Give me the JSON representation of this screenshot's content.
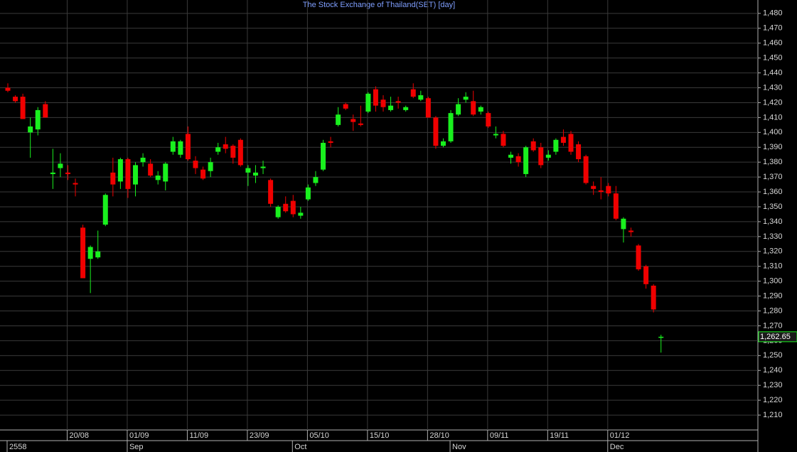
{
  "chart_data": {
    "type": "candlestick",
    "title": "The Stock Exchange of Thailand(SET) [day]",
    "categories": [
      null,
      null,
      null,
      null,
      null,
      null,
      null,
      null,
      "20/08",
      null,
      null,
      null,
      null,
      null,
      null,
      null,
      "01/09",
      null,
      null,
      null,
      null,
      null,
      null,
      null,
      "11/09",
      null,
      null,
      null,
      null,
      null,
      null,
      null,
      "23/09",
      null,
      null,
      null,
      null,
      null,
      null,
      null,
      "05/10",
      null,
      null,
      null,
      null,
      null,
      null,
      null,
      "15/10",
      null,
      null,
      null,
      null,
      null,
      null,
      null,
      "28/10",
      null,
      null,
      null,
      null,
      null,
      null,
      null,
      "09/11",
      null,
      null,
      null,
      null,
      null,
      null,
      null,
      "19/11",
      null,
      null,
      null,
      null,
      null,
      null,
      null,
      "01/12",
      null,
      null,
      null,
      null,
      null,
      null,
      null
    ],
    "month_labels": [
      "2558",
      null,
      null,
      null,
      null,
      null,
      null,
      null,
      null,
      null,
      null,
      null,
      null,
      null,
      null,
      null,
      "Sep",
      null,
      null,
      null,
      null,
      null,
      null,
      null,
      null,
      null,
      null,
      null,
      null,
      null,
      null,
      null,
      null,
      null,
      null,
      null,
      null,
      null,
      "Oct",
      null,
      null,
      null,
      null,
      null,
      null,
      null,
      null,
      null,
      null,
      null,
      null,
      null,
      null,
      null,
      null,
      null,
      null,
      null,
      null,
      "Nov",
      null,
      null,
      null,
      null,
      null,
      null,
      null,
      null,
      null,
      null,
      null,
      null,
      null,
      null,
      null,
      null,
      null,
      null,
      null,
      null,
      "Dec",
      null,
      null,
      null,
      null,
      null,
      null,
      null
    ],
    "open": [
      1430,
      1424,
      1424,
      1400,
      1402,
      1419,
      1372,
      1376,
      1373,
      1366,
      1336,
      1315,
      1316,
      1338,
      1373,
      1367,
      1382,
      1365,
      1380,
      1379,
      1368,
      1367,
      1387,
      1385,
      1399,
      1381,
      1375,
      1374,
      1387,
      1392,
      1391,
      1395,
      1373,
      1371,
      1376,
      1368,
      1343,
      1352,
      1354,
      1344,
      1355,
      1366,
      1375,
      1394,
      1405,
      1419,
      1409,
      1406,
      1414,
      1429,
      1422,
      1415,
      1421,
      1415,
      1429,
      1422,
      1423,
      1410,
      1391,
      1394,
      1412,
      1422,
      1421,
      1414,
      1413,
      1398,
      1399,
      1383,
      1384,
      1372,
      1394,
      1390,
      1383,
      1387,
      1397,
      1399,
      1392,
      1384,
      1364,
      1361,
      1364,
      1359,
      1335,
      1334,
      1324,
      1310,
      1297,
      1262
    ],
    "high": [
      1433,
      1425,
      1426,
      1410,
      1417,
      1421,
      1389,
      1386,
      1378,
      1369,
      1338,
      1324,
      1334,
      1359,
      1383,
      1383,
      1383,
      1380,
      1386,
      1382,
      1374,
      1380,
      1397,
      1395,
      1404,
      1384,
      1377,
      1383,
      1393,
      1397,
      1392,
      1396,
      1378,
      1378,
      1381,
      1369,
      1351,
      1357,
      1358,
      1350,
      1365,
      1374,
      1395,
      1397,
      1417,
      1420,
      1412,
      1418,
      1427,
      1431,
      1425,
      1424,
      1424,
      1418,
      1433,
      1428,
      1424,
      1411,
      1396,
      1415,
      1423,
      1427,
      1428,
      1418,
      1414,
      1404,
      1401,
      1387,
      1386,
      1391,
      1396,
      1393,
      1388,
      1396,
      1402,
      1401,
      1394,
      1385,
      1367,
      1370,
      1366,
      1364,
      1343,
      1336,
      1325,
      1311,
      1298,
      1264
    ],
    "low": [
      1427,
      1420,
      1409,
      1383,
      1398,
      1410,
      1362,
      1370,
      1368,
      1357,
      1302,
      1292,
      1315,
      1337,
      1357,
      1362,
      1356,
      1357,
      1377,
      1370,
      1365,
      1361,
      1385,
      1383,
      1381,
      1372,
      1368,
      1370,
      1385,
      1386,
      1379,
      1377,
      1364,
      1366,
      1372,
      1350,
      1342,
      1346,
      1343,
      1342,
      1354,
      1364,
      1374,
      1390,
      1404,
      1415,
      1401,
      1404,
      1413,
      1414,
      1414,
      1414,
      1416,
      1414,
      1423,
      1421,
      1410,
      1389,
      1390,
      1393,
      1411,
      1420,
      1411,
      1412,
      1403,
      1396,
      1390,
      1379,
      1377,
      1370,
      1387,
      1376,
      1381,
      1385,
      1391,
      1385,
      1380,
      1365,
      1358,
      1355,
      1357,
      1341,
      1326,
      1330,
      1307,
      1295,
      1279,
      1252
    ],
    "close": [
      1428,
      1421,
      1409,
      1404,
      1415,
      1410,
      1373,
      1379,
      1372,
      1365,
      1302,
      1323,
      1320,
      1358,
      1365,
      1382,
      1362,
      1378,
      1383,
      1371,
      1371,
      1379,
      1394,
      1394,
      1382,
      1376,
      1369,
      1380,
      1390,
      1389,
      1383,
      1378,
      1376,
      1373,
      1377,
      1352,
      1350,
      1347,
      1345,
      1346,
      1363,
      1370,
      1393,
      1393,
      1412,
      1416,
      1407,
      1405,
      1426,
      1418,
      1417,
      1418,
      1420,
      1417,
      1424,
      1425,
      1410,
      1391,
      1394,
      1413,
      1419,
      1424,
      1412,
      1417,
      1404,
      1399,
      1391,
      1385,
      1380,
      1390,
      1388,
      1378,
      1385,
      1395,
      1393,
      1387,
      1382,
      1366,
      1362,
      1360,
      1359,
      1342,
      1342,
      1333,
      1308,
      1298,
      1281,
      1262.65
    ],
    "up_color": "#19f01e",
    "down_color": "#f00000",
    "last_value_label": "1,262.65",
    "ylim": [
      1200,
      1489
    ],
    "yticks": [
      {
        "value": 1210,
        "label": "1,210"
      },
      {
        "value": 1220,
        "label": "1,220"
      },
      {
        "value": 1230,
        "label": "1,230"
      },
      {
        "value": 1240,
        "label": "1,240"
      },
      {
        "value": 1250,
        "label": "1,250"
      },
      {
        "value": 1260,
        "label": "1,260"
      },
      {
        "value": 1270,
        "label": "1,270"
      },
      {
        "value": 1280,
        "label": "1,280"
      },
      {
        "value": 1290,
        "label": "1,290"
      },
      {
        "value": 1300,
        "label": "1,300"
      },
      {
        "value": 1310,
        "label": "1,310"
      },
      {
        "value": 1320,
        "label": "1,320"
      },
      {
        "value": 1330,
        "label": "1,330"
      },
      {
        "value": 1340,
        "label": "1,340"
      },
      {
        "value": 1350,
        "label": "1,350"
      },
      {
        "value": 1360,
        "label": "1,360"
      },
      {
        "value": 1370,
        "label": "1,370"
      },
      {
        "value": 1380,
        "label": "1,380"
      },
      {
        "value": 1390,
        "label": "1,390"
      },
      {
        "value": 1400,
        "label": "1,400"
      },
      {
        "value": 1410,
        "label": "1,410"
      },
      {
        "value": 1420,
        "label": "1,420"
      },
      {
        "value": 1430,
        "label": "1,430"
      },
      {
        "value": 1440,
        "label": "1,440"
      },
      {
        "value": 1450,
        "label": "1,450"
      },
      {
        "value": 1460,
        "label": "1,460"
      },
      {
        "value": 1470,
        "label": "1,470"
      },
      {
        "value": 1480,
        "label": "1,480"
      }
    ],
    "grid": true
  }
}
